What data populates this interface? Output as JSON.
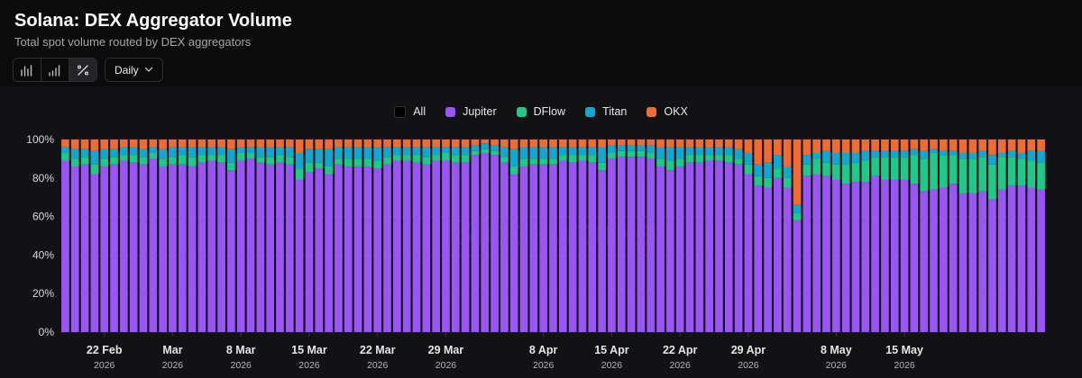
{
  "header": {
    "title": "Solana: DEX Aggregator Volume",
    "subtitle": "Total spot volume routed by DEX aggregators"
  },
  "toolbar": {
    "icons": [
      "bar-chart-icon",
      "stacked-bar-icon",
      "percent-icon"
    ],
    "active_icon": "percent-icon",
    "interval": "Daily"
  },
  "legend": [
    {
      "label": "All",
      "color": "#000000"
    },
    {
      "label": "Jupiter",
      "color": "#9a55f7"
    },
    {
      "label": "DFlow",
      "color": "#1ec98a"
    },
    {
      "label": "Titan",
      "color": "#12a7cf"
    },
    {
      "label": "OKX",
      "color": "#f26b32"
    }
  ],
  "watermark": "Blockworks",
  "chart_data": {
    "type": "bar",
    "stacked": true,
    "percent": true,
    "x_start": "2026-02-18",
    "x_ticks": [
      {
        "label": "22 Feb",
        "year": "2026",
        "date": "2026-02-22"
      },
      {
        "label": "Mar",
        "year": "2026",
        "date": "2026-03-01"
      },
      {
        "label": "8 Mar",
        "year": "2026",
        "date": "2026-03-08"
      },
      {
        "label": "15 Mar",
        "year": "2026",
        "date": "2026-03-15"
      },
      {
        "label": "22 Mar",
        "year": "2026",
        "date": "2026-03-22"
      },
      {
        "label": "29 Mar",
        "year": "2026",
        "date": "2026-03-29"
      },
      {
        "label": "8 Apr",
        "year": "2026",
        "date": "2026-04-08"
      },
      {
        "label": "15 Apr",
        "year": "2026",
        "date": "2026-04-15"
      },
      {
        "label": "22 Apr",
        "year": "2026",
        "date": "2026-04-22"
      },
      {
        "label": "29 Apr",
        "year": "2026",
        "date": "2026-04-29"
      },
      {
        "label": "8 May",
        "year": "2026",
        "date": "2026-05-08"
      },
      {
        "label": "15 May",
        "year": "2026",
        "date": "2026-05-15"
      }
    ],
    "y_ticks": [
      "0%",
      "20%",
      "40%",
      "60%",
      "80%",
      "100%"
    ],
    "ylim": [
      0,
      100
    ],
    "series": [
      {
        "name": "Jupiter",
        "color": "#9a55f7",
        "values": [
          89,
          86,
          87,
          82,
          86,
          87,
          89,
          88,
          87,
          90,
          86,
          87,
          87,
          86,
          88,
          89,
          88,
          84,
          89,
          90,
          88,
          87,
          88,
          87,
          79,
          83,
          85,
          82,
          87,
          86,
          86,
          86,
          85,
          87,
          89,
          89,
          88,
          87,
          89,
          89,
          88,
          88,
          92,
          93,
          92,
          88,
          82,
          86,
          87,
          87,
          87,
          89,
          88,
          89,
          88,
          84,
          90,
          91,
          91,
          91,
          90,
          86,
          84,
          86,
          88,
          88,
          89,
          89,
          88,
          87,
          82,
          76,
          75,
          80,
          75,
          58,
          81,
          82,
          81,
          79,
          77,
          78,
          78,
          81,
          79,
          79,
          79,
          77,
          73,
          74,
          75,
          77,
          72,
          72,
          73,
          69,
          74,
          76,
          76,
          75,
          74
        ]
      },
      {
        "name": "DFlow",
        "color": "#1ec98a",
        "values": [
          4,
          4,
          4,
          5,
          4,
          4,
          3,
          4,
          4,
          3,
          4,
          4,
          5,
          5,
          4,
          3,
          4,
          4,
          4,
          3,
          3,
          4,
          4,
          4,
          6,
          5,
          3,
          4,
          3,
          4,
          4,
          4,
          4,
          4,
          3,
          3,
          4,
          4,
          3,
          4,
          4,
          4,
          2,
          2,
          2,
          3,
          4,
          4,
          3,
          3,
          3,
          3,
          4,
          3,
          4,
          4,
          3,
          3,
          3,
          3,
          3,
          4,
          5,
          4,
          4,
          4,
          3,
          3,
          4,
          3,
          5,
          5,
          5,
          5,
          5,
          4,
          6,
          8,
          7,
          8,
          10,
          10,
          11,
          10,
          12,
          12,
          12,
          15,
          17,
          19,
          17,
          15,
          18,
          18,
          18,
          18,
          17,
          15,
          14,
          14,
          14
        ]
      },
      {
        "name": "Titan",
        "color": "#12a7cf",
        "values": [
          3,
          5,
          4,
          7,
          5,
          4,
          4,
          4,
          4,
          3,
          5,
          5,
          4,
          5,
          4,
          4,
          4,
          7,
          3,
          3,
          5,
          5,
          4,
          5,
          8,
          7,
          7,
          9,
          6,
          6,
          6,
          6,
          7,
          5,
          4,
          4,
          4,
          5,
          4,
          3,
          4,
          4,
          3,
          3,
          3,
          5,
          9,
          6,
          6,
          6,
          6,
          4,
          4,
          4,
          4,
          8,
          4,
          3,
          3,
          3,
          4,
          6,
          7,
          6,
          4,
          4,
          4,
          4,
          4,
          5,
          6,
          6,
          8,
          7,
          6,
          4,
          5,
          3,
          6,
          6,
          6,
          5,
          5,
          3,
          3,
          3,
          3,
          3,
          4,
          2,
          2,
          2,
          3,
          3,
          3,
          5,
          2,
          3,
          3,
          5,
          6
        ]
      },
      {
        "name": "OKX",
        "color": "#f26b32",
        "values": [
          4,
          5,
          5,
          6,
          5,
          5,
          4,
          4,
          5,
          4,
          5,
          4,
          4,
          4,
          4,
          4,
          4,
          5,
          4,
          4,
          4,
          4,
          4,
          4,
          7,
          5,
          5,
          5,
          4,
          4,
          4,
          4,
          4,
          4,
          4,
          4,
          4,
          4,
          4,
          4,
          4,
          4,
          3,
          2,
          3,
          4,
          5,
          4,
          4,
          4,
          4,
          4,
          4,
          4,
          4,
          4,
          3,
          3,
          3,
          3,
          3,
          4,
          4,
          4,
          4,
          4,
          4,
          4,
          4,
          5,
          7,
          13,
          12,
          8,
          14,
          34,
          8,
          7,
          6,
          7,
          7,
          7,
          6,
          6,
          6,
          6,
          6,
          5,
          6,
          5,
          6,
          6,
          7,
          7,
          6,
          8,
          7,
          6,
          7,
          6,
          6
        ]
      }
    ]
  }
}
